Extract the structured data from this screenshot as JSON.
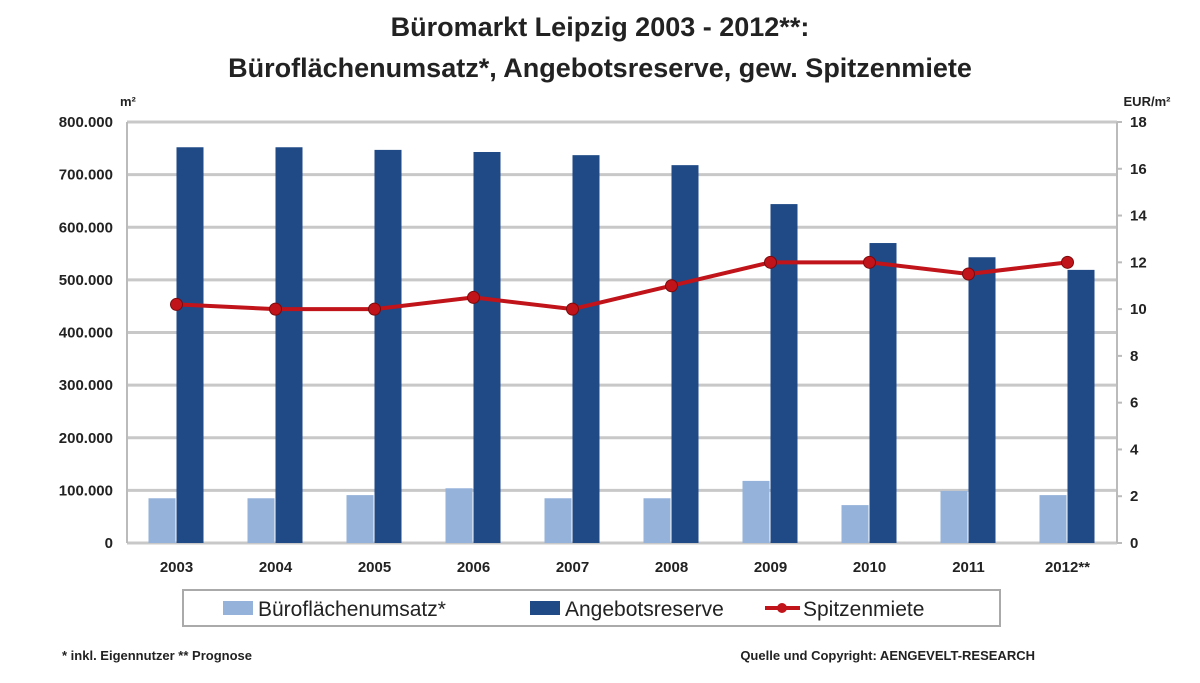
{
  "chart_data": {
    "type": "bar",
    "title": "Büromarkt Leipzig 2003 - 2012**:",
    "subtitle": "Büroflächenumsatz*, Angebotsreserve, gew. Spitzenmiete",
    "ylabel_left": "m²",
    "ylabel_right": "EUR/m²",
    "ylim_left": [
      0,
      800000
    ],
    "ylim_right": [
      0,
      18
    ],
    "yticks_left": [
      "0",
      "100.000",
      "200.000",
      "300.000",
      "400.000",
      "500.000",
      "600.000",
      "700.000",
      "800.000"
    ],
    "yticks_right": [
      "0",
      "2",
      "4",
      "6",
      "8",
      "10",
      "12",
      "14",
      "16",
      "18"
    ],
    "grid": true,
    "legend_placement": "bottom",
    "categories": [
      "2003",
      "2004",
      "2005",
      "2006",
      "2007",
      "2008",
      "2009",
      "2010",
      "2011",
      "2012**"
    ],
    "series": [
      {
        "name": "Büroflächenumsatz*",
        "type": "bar",
        "axis": "left",
        "color": "#94b2da",
        "values": [
          85000,
          85000,
          91000,
          104000,
          85000,
          85000,
          118000,
          72000,
          99000,
          91000
        ]
      },
      {
        "name": "Angebotsreserve",
        "type": "bar",
        "axis": "left",
        "color": "#1f4a86",
        "values": [
          752000,
          752000,
          747000,
          743000,
          737000,
          718000,
          644000,
          570000,
          543000,
          519000
        ]
      },
      {
        "name": "Spitzenmiete",
        "type": "line",
        "axis": "right",
        "color": "#c0141a",
        "values": [
          10.2,
          10.0,
          10.0,
          10.5,
          10.0,
          11.0,
          12.0,
          12.0,
          11.5,
          12.0
        ]
      }
    ]
  },
  "footnote_left": "* inkl. Eigennutzer  ** Prognose",
  "footnote_right": "Quelle und Copyright: AENGEVELT-RESEARCH"
}
